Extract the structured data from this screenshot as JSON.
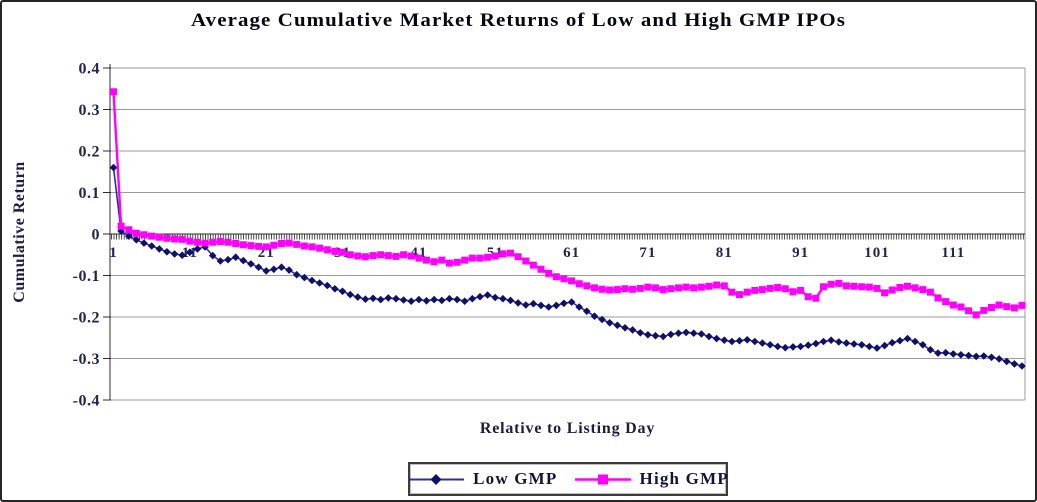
{
  "chart_data": {
    "type": "line",
    "title": "Average Cumulative Market Returns of Low and High GMP IPOs",
    "xlabel": "Relative to Listing Day",
    "ylabel": "Cumulative Return",
    "x_range": [
      1,
      120
    ],
    "x_tick_labels": [
      1,
      11,
      21,
      31,
      41,
      51,
      61,
      71,
      81,
      91,
      101,
      111
    ],
    "ylim": [
      -0.4,
      0.4
    ],
    "y_ticks": [
      0.4,
      0.3,
      0.2,
      0.1,
      0,
      -0.1,
      -0.2,
      -0.3,
      -0.4
    ],
    "y_tick_labels": [
      "0.4",
      "0.3",
      "0.2",
      "0.1",
      "0",
      "-0.1",
      "-0.2",
      "-0.3",
      "-0.4"
    ],
    "grid": "horizontal gridlines every 0.1",
    "legend_position": "bottom-center",
    "series": [
      {
        "name": "Low GMP",
        "color": "#10106a",
        "line_color": "#2d2da0",
        "marker": "diamond",
        "values": [
          0.16,
          0.007,
          -0.005,
          -0.014,
          -0.022,
          -0.029,
          -0.036,
          -0.043,
          -0.048,
          -0.051,
          -0.044,
          -0.036,
          -0.031,
          -0.052,
          -0.065,
          -0.062,
          -0.056,
          -0.064,
          -0.072,
          -0.08,
          -0.089,
          -0.085,
          -0.08,
          -0.087,
          -0.098,
          -0.105,
          -0.112,
          -0.118,
          -0.124,
          -0.132,
          -0.138,
          -0.146,
          -0.152,
          -0.157,
          -0.155,
          -0.158,
          -0.154,
          -0.156,
          -0.159,
          -0.162,
          -0.158,
          -0.161,
          -0.158,
          -0.16,
          -0.156,
          -0.158,
          -0.162,
          -0.156,
          -0.151,
          -0.147,
          -0.153,
          -0.156,
          -0.16,
          -0.166,
          -0.171,
          -0.168,
          -0.172,
          -0.176,
          -0.172,
          -0.167,
          -0.164,
          -0.176,
          -0.186,
          -0.198,
          -0.206,
          -0.214,
          -0.22,
          -0.226,
          -0.231,
          -0.238,
          -0.243,
          -0.245,
          -0.247,
          -0.242,
          -0.239,
          -0.237,
          -0.239,
          -0.241,
          -0.247,
          -0.252,
          -0.256,
          -0.259,
          -0.257,
          -0.255,
          -0.259,
          -0.263,
          -0.267,
          -0.271,
          -0.274,
          -0.272,
          -0.271,
          -0.268,
          -0.264,
          -0.259,
          -0.256,
          -0.26,
          -0.263,
          -0.265,
          -0.267,
          -0.271,
          -0.275,
          -0.269,
          -0.262,
          -0.257,
          -0.252,
          -0.259,
          -0.267,
          -0.279,
          -0.287,
          -0.286,
          -0.289,
          -0.291,
          -0.293,
          -0.295,
          -0.294,
          -0.297,
          -0.301,
          -0.307,
          -0.313,
          -0.318
        ]
      },
      {
        "name": "High GMP",
        "color": "#ff00ff",
        "line_color": "#ff00ff",
        "marker": "square",
        "values": [
          0.343,
          0.019,
          0.01,
          0.002,
          -0.002,
          -0.005,
          -0.008,
          -0.01,
          -0.012,
          -0.013,
          -0.017,
          -0.02,
          -0.022,
          -0.02,
          -0.018,
          -0.02,
          -0.023,
          -0.026,
          -0.028,
          -0.03,
          -0.031,
          -0.027,
          -0.023,
          -0.022,
          -0.025,
          -0.029,
          -0.031,
          -0.034,
          -0.038,
          -0.042,
          -0.044,
          -0.05,
          -0.053,
          -0.055,
          -0.052,
          -0.05,
          -0.052,
          -0.054,
          -0.05,
          -0.053,
          -0.058,
          -0.063,
          -0.067,
          -0.063,
          -0.07,
          -0.068,
          -0.063,
          -0.058,
          -0.058,
          -0.056,
          -0.053,
          -0.048,
          -0.046,
          -0.055,
          -0.065,
          -0.075,
          -0.085,
          -0.095,
          -0.103,
          -0.108,
          -0.113,
          -0.12,
          -0.125,
          -0.13,
          -0.133,
          -0.135,
          -0.134,
          -0.132,
          -0.133,
          -0.131,
          -0.128,
          -0.13,
          -0.134,
          -0.132,
          -0.13,
          -0.128,
          -0.13,
          -0.128,
          -0.126,
          -0.123,
          -0.125,
          -0.14,
          -0.146,
          -0.14,
          -0.136,
          -0.134,
          -0.131,
          -0.129,
          -0.132,
          -0.139,
          -0.136,
          -0.151,
          -0.155,
          -0.127,
          -0.121,
          -0.119,
          -0.125,
          -0.126,
          -0.127,
          -0.128,
          -0.131,
          -0.142,
          -0.135,
          -0.129,
          -0.126,
          -0.13,
          -0.134,
          -0.14,
          -0.154,
          -0.163,
          -0.171,
          -0.176,
          -0.185,
          -0.195,
          -0.184,
          -0.177,
          -0.171,
          -0.175,
          -0.178,
          -0.172
        ]
      }
    ]
  },
  "legend": {
    "items": [
      {
        "label": "Low GMP"
      },
      {
        "label": "High GMP"
      }
    ]
  },
  "colors": {
    "low_gmp": "#10106a",
    "high_gmp": "#ff00ff",
    "gridline": "#9b9b9b",
    "axis": "#2b2b2b",
    "tick_text": "#23234f"
  }
}
